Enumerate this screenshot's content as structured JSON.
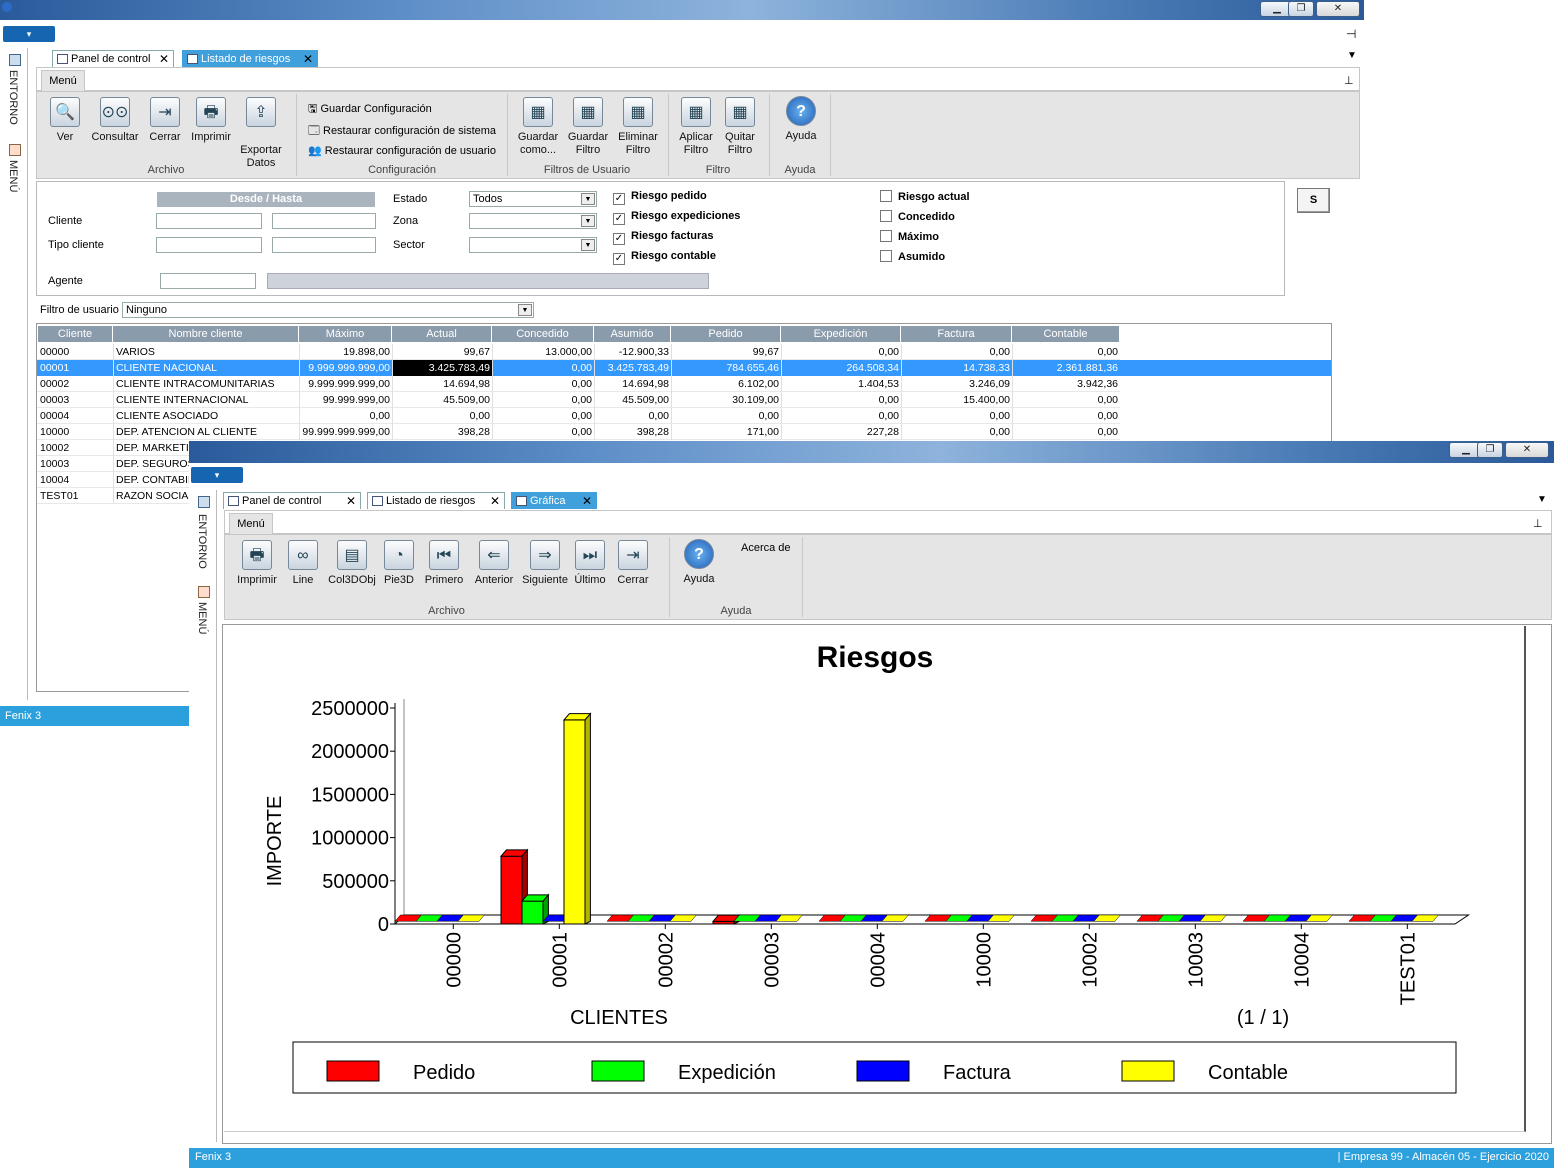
{
  "back_window": {
    "tabs": [
      {
        "label": "Panel de control"
      },
      {
        "label": "Listado de riesgos"
      }
    ],
    "ribbon": {
      "menu_tab": "Menú",
      "archivo": {
        "label": "Archivo",
        "buttons": [
          {
            "label": "Ver",
            "icon": "magnifier-icon"
          },
          {
            "label": "Consultar",
            "icon": "binoculars-icon"
          },
          {
            "label": "Cerrar",
            "icon": "exit-door-icon"
          },
          {
            "label": "Imprimir",
            "icon": "printer-icon"
          },
          {
            "label": "Exportar Datos",
            "l1": "Exportar",
            "l2": "Datos",
            "icon": "export-icon"
          }
        ]
      },
      "configuracion": {
        "label": "Configuración",
        "items": [
          "Guardar Configuración",
          "Restaurar configuración de sistema",
          "Restaurar configuración de usuario"
        ]
      },
      "filtros_usuario": {
        "label": "Filtros de Usuario",
        "buttons": [
          {
            "l1": "Guardar",
            "l2": "como..."
          },
          {
            "l1": "Guardar",
            "l2": "Filtro"
          },
          {
            "l1": "Eliminar",
            "l2": "Filtro"
          }
        ]
      },
      "filtro": {
        "label": "Filtro",
        "buttons": [
          {
            "l1": "Aplicar",
            "l2": "Filtro"
          },
          {
            "l1": "Quitar",
            "l2": "Filtro"
          }
        ]
      },
      "ayuda": {
        "label": "Ayuda",
        "button": "Ayuda"
      }
    },
    "filters": {
      "desde_hasta": "Desde / Hasta",
      "cliente": "Cliente",
      "tipo_cliente": "Tipo cliente",
      "agente": "Agente",
      "estado": "Estado",
      "estado_value": "Todos",
      "zona": "Zona",
      "sector": "Sector",
      "checks_left": [
        {
          "label": "Riesgo pedido",
          "checked": true
        },
        {
          "label": "Riesgo expediciones",
          "checked": true
        },
        {
          "label": "Riesgo facturas",
          "checked": true
        },
        {
          "label": "Riesgo contable",
          "checked": true
        }
      ],
      "checks_right": [
        {
          "label": "Riesgo actual",
          "checked": false
        },
        {
          "label": "Concedido",
          "checked": false
        },
        {
          "label": "Máximo",
          "checked": false
        },
        {
          "label": "Asumido",
          "checked": false
        }
      ],
      "s_button": "S",
      "user_filter_label": "Filtro de usuario",
      "user_filter_value": "Ninguno"
    },
    "grid": {
      "columns": [
        "Cliente",
        "Nombre cliente",
        "Máximo",
        "Actual",
        "Concedido",
        "Asumido",
        "Pedido",
        "Expedición",
        "Factura",
        "Contable"
      ],
      "rows": [
        [
          "00000",
          "VARIOS",
          "19.898,00",
          "99,67",
          "13.000,00",
          "-12.900,33",
          "99,67",
          "0,00",
          "0,00",
          "0,00"
        ],
        [
          "00001",
          "CLIENTE NACIONAL",
          "9.999.999.999,00",
          "3.425.783,49",
          "0,00",
          "3.425.783,49",
          "784.655,46",
          "264.508,34",
          "14.738,33",
          "2.361.881,36"
        ],
        [
          "00002",
          "CLIENTE INTRACOMUNITARIAS",
          "9.999.999.999,00",
          "14.694,98",
          "0,00",
          "14.694,98",
          "6.102,00",
          "1.404,53",
          "3.246,09",
          "3.942,36"
        ],
        [
          "00003",
          "CLIENTE INTERNACIONAL",
          "99.999.999,00",
          "45.509,00",
          "0,00",
          "45.509,00",
          "30.109,00",
          "0,00",
          "15.400,00",
          "0,00"
        ],
        [
          "00004",
          "CLIENTE ASOCIADO",
          "0,00",
          "0,00",
          "0,00",
          "0,00",
          "0,00",
          "0,00",
          "0,00",
          "0,00"
        ],
        [
          "10000",
          "DEP. ATENCION AL CLIENTE",
          "99.999.999.999,00",
          "398,28",
          "0,00",
          "398,28",
          "171,00",
          "227,28",
          "0,00",
          "0,00"
        ],
        [
          "10002",
          "DEP. MARKETIN"
        ],
        [
          "10003",
          "DEP. SEGUROS"
        ],
        [
          "10004",
          "DEP. CONTABIL"
        ],
        [
          "TEST01",
          "RAZON SOCIAL"
        ]
      ]
    },
    "sidebar": {
      "entorno": "ENTORNO",
      "menu": "MENÚ"
    },
    "status": "Fenix 3"
  },
  "front_window": {
    "tabs": [
      {
        "label": "Panel de control"
      },
      {
        "label": "Listado de riesgos"
      },
      {
        "label": "Gráfica"
      }
    ],
    "ribbon": {
      "menu_tab": "Menú",
      "archivo": {
        "label": "Archivo",
        "buttons": [
          {
            "label": "Imprimir",
            "icon": "printer-icon"
          },
          {
            "label": "Line",
            "icon": "chain-link-icon"
          },
          {
            "label": "Col3DObj",
            "icon": "bar-chart-icon"
          },
          {
            "label": "Pie3D",
            "icon": "pie-chart-icon"
          },
          {
            "label": "Primero",
            "icon": "first-icon"
          },
          {
            "label": "Anterior",
            "icon": "back-arrow-icon"
          },
          {
            "label": "Siguiente",
            "icon": "next-page-icon"
          },
          {
            "label": "Último",
            "icon": "last-icon"
          },
          {
            "label": "Cerrar",
            "icon": "exit-door-icon"
          }
        ]
      },
      "ayuda": {
        "label": "Ayuda",
        "button": "Ayuda",
        "acerca": "Acerca de"
      }
    },
    "sidebar": {
      "entorno": "ENTORNO",
      "menu": "MENÚ"
    },
    "status": {
      "left": "Fenix 3",
      "right": "| Empresa 99  -  Almacén 05  -  Ejercicio 2020"
    }
  },
  "chart_data": {
    "type": "bar",
    "title": "Riesgos",
    "xlabel": "CLIENTES",
    "ylabel": "IMPORTE",
    "page": "(1 / 1)",
    "ylim": [
      0,
      2500000
    ],
    "yticks": [
      "0",
      "500000",
      "1000000",
      "1500000",
      "2000000",
      "2500000"
    ],
    "categories": [
      "00000",
      "00001",
      "00002",
      "00003",
      "00004",
      "10000",
      "10002",
      "10003",
      "10004",
      "TEST01"
    ],
    "series": [
      {
        "name": "Pedido",
        "color": "#ff0000",
        "values": [
          99.67,
          784655.46,
          6102,
          30109,
          0,
          171,
          0,
          0,
          0,
          0
        ]
      },
      {
        "name": "Expedición",
        "color": "#00ff00",
        "values": [
          0,
          264508.34,
          1404.53,
          0,
          0,
          227.28,
          0,
          0,
          0,
          0
        ]
      },
      {
        "name": "Factura",
        "color": "#0000ff",
        "values": [
          0,
          14738.33,
          3246.09,
          15400,
          0,
          0,
          0,
          0,
          0,
          0
        ]
      },
      {
        "name": "Contable",
        "color": "#ffff00",
        "values": [
          0,
          2361881.36,
          3942.36,
          0,
          0,
          0,
          0,
          0,
          0,
          0
        ]
      }
    ],
    "legend": "bottom"
  }
}
